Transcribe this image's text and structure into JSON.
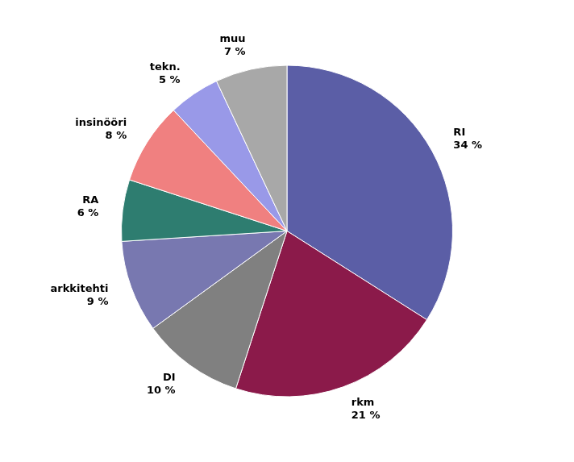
{
  "chart_data": {
    "type": "pie",
    "categories": [
      "RI",
      "rkm",
      "DI",
      "arkkitehti",
      "RA",
      "insinööri",
      "tekn.",
      "muu"
    ],
    "values": [
      34,
      21,
      10,
      9,
      6,
      8,
      5,
      7
    ],
    "value_labels": [
      "34 %",
      "21 %",
      "10 %",
      "9 %",
      "6 %",
      "8 %",
      "5 %",
      "7 %"
    ],
    "colors": [
      "#5b5ea6",
      "#8b1a4a",
      "#808080",
      "#7878b0",
      "#2e7d70",
      "#f08080",
      "#9999e8",
      "#a8a8a8"
    ],
    "data_labels": true
  }
}
